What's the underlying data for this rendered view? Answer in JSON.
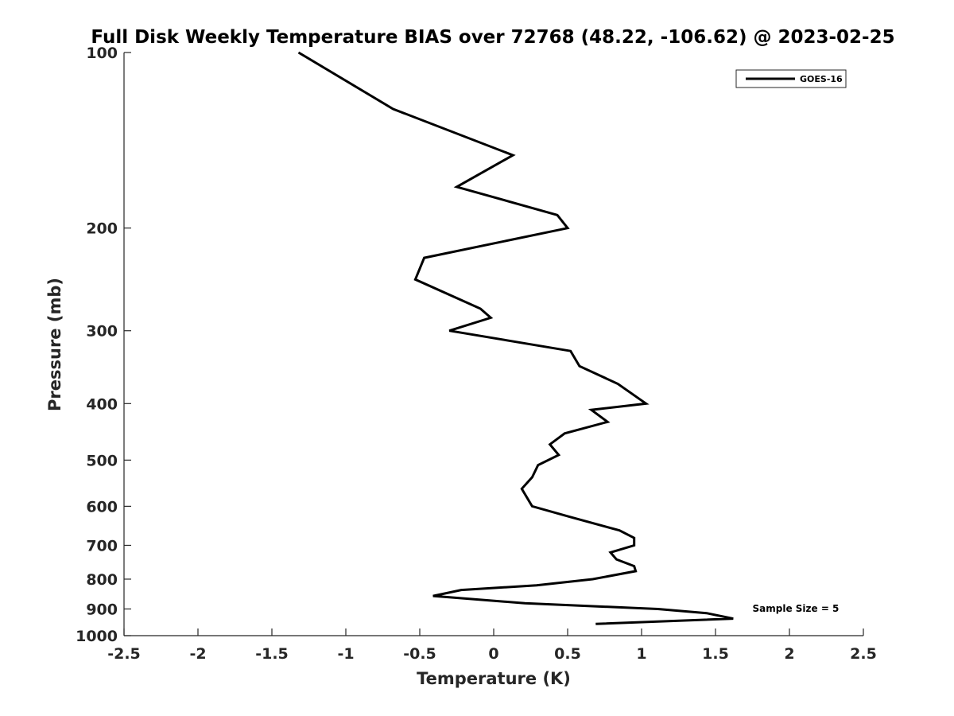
{
  "chart_data": {
    "type": "line",
    "title": "Full Disk Weekly Temperature BIAS over 72768 (48.22, -106.62) @ 2023-02-25",
    "xlabel": "Temperature (K)",
    "ylabel": "Pressure (mb)",
    "xlim": [
      -2.5,
      2.5
    ],
    "ylim": [
      100,
      1000
    ],
    "y_scale": "log",
    "y_reversed": true,
    "x_ticks": [
      -2.5,
      -2,
      -1.5,
      -1,
      -0.5,
      0,
      0.5,
      1,
      1.5,
      2,
      2.5
    ],
    "x_tick_labels": [
      "-2.5",
      "-2",
      "-1.5",
      "-1",
      "-0.5",
      "0",
      "0.5",
      "1",
      "1.5",
      "2",
      "2.5"
    ],
    "y_ticks": [
      100,
      200,
      300,
      400,
      500,
      600,
      700,
      800,
      900,
      1000
    ],
    "y_tick_labels": [
      "100",
      "200",
      "300",
      "400",
      "500",
      "600",
      "700",
      "800",
      "900",
      "1000"
    ],
    "grid": false,
    "legend_position": "top-right",
    "series": [
      {
        "name": "GOES-16",
        "color": "#000000",
        "x": [
          -1.32,
          -0.68,
          0.13,
          -0.25,
          0.43,
          0.5,
          -0.47,
          -0.53,
          -0.09,
          -0.02,
          -0.3,
          0.52,
          0.58,
          0.84,
          1.03,
          0.66,
          0.77,
          0.48,
          0.38,
          0.44,
          0.3,
          0.26,
          0.19,
          0.26,
          0.51,
          0.85,
          0.95,
          0.95,
          0.79,
          0.83,
          0.95,
          0.96,
          0.67,
          0.29,
          -0.22,
          -0.41,
          0.21,
          1.11,
          1.44,
          1.62,
          0.69
        ],
        "y": [
          100,
          125,
          150,
          170,
          190,
          200,
          225,
          245,
          275,
          285,
          300,
          325,
          345,
          370,
          400,
          410,
          430,
          450,
          470,
          490,
          510,
          535,
          560,
          600,
          625,
          660,
          680,
          700,
          720,
          740,
          760,
          775,
          800,
          820,
          835,
          855,
          880,
          900,
          915,
          935,
          955
        ]
      }
    ],
    "annotations": [
      {
        "text": "Sample Size = 5",
        "x": 1.75,
        "y": 910
      }
    ]
  }
}
